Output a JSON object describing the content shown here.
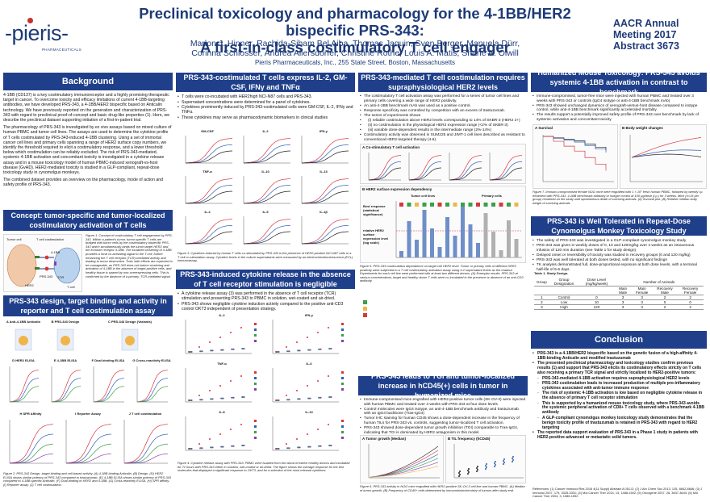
{
  "header": {
    "logo_text": "-pieris-",
    "logo_sub": "PHARMACEUTICALS",
    "title_line1": "Preclinical toxicology and pharmacology for the 4-1BB/HER2 bispecific PRS-343:",
    "title_line2": "A first-in-class costimulatory T cell engager",
    "authors_line1": "Marlon J. Hinner, Rachida-Siham Bel Aiba, Thomas Jaquin, Sven Berger, Manuela Dürr,",
    "authors_line2": "Corinna Schlosser, Andrea Allersdorfer, Christine Rothe, Louis A. Matis, Shane A. Olwill",
    "institution": "Pieris Pharmaceuticals, Inc., 255 State Street, Boston, Massachusetts",
    "meeting_line1": "AACR Annual",
    "meeting_line2": "Meeting 2017",
    "meeting_line3": "Abstract 3673"
  },
  "background": {
    "heading": "Background",
    "p1": "4-1BB (CD137) is a key costimulatory immunoreceptor and a highly promising therapeutic target in cancer. To overcome toxicity and efficacy limitations of current 4-1BB-targeting antibodies, we have developed PRS-343, a 4-1BB/HER2 bispecific based on Anticalin technology. We have previously reported on the generation and characterization of PRS-343 with regard to preclinical proof-of-concept and basic drug-like properties (1). Here, we describe the preclinical dataset supporting initiation of a first-in-patient trial.",
    "p2": "The pharmacology of PRS-343 is investigated by ex vivo assays based on mixed culture of human PBMC and tumor cell lines. The assays are used to determine the cytokine profile of T cells costimulated by PRS-343-induced 4-1BB clustering. Using a set of immortal cancer cell lines and primary cells spanning a range of HER2 surface copy numbers, we identify the threshold required to elicit a costimulatory response, and a lower threshold below which costimulation can be reliably excluded. The risk of PRS-343-mediated, systemic 4-1BB activation and concomitant toxicity is investigated in a cytokine release assay and in a mouse toxicology model of human PBMC-induced xenograft-vs-host disease (GvHD). HER2-mediated toxicity is studied in a GLP-compliant, repeat-dose toxicology study in cynomolgus monkeys.",
    "p3": "The combined dataset provides an overview on the pharmacology, mode of action and safety profile of PRS-343."
  },
  "concept": {
    "heading": "Concept: tumor-specific and tumor-localized costimulatory activation of T cells",
    "labels": [
      "Tumor cell",
      "T cell costimulation",
      "HER2",
      "PRS-343",
      "4-1BB",
      "TCR",
      "T cell"
    ],
    "caption": "Figure 1. Concept of costimulatory T cell engagement by PRS-343. Within a patient's tumor, tumor-specific T cells are bridged with tumor cells by the costimulatory bispecific PRS-343 which simultaneously binds the tumor target HER2 and the immune receptor 4-1BB. The localized clustering of 4-1BB provides a local co-activating signal to the T cell, further enhancing the T cell receptor (TCR)-mediated activity and leading to tumor destruction. Toxic side effects are expected to be manageable, as PRS-343 does not induce clustering and activation of 4-1BB in the absence of target-positive cells, and healthy tissue is spared by non-overexpressing cells. This is confirmed by the absence of a primary, TCR-mediated signal."
  },
  "design": {
    "heading": "PRS-343 design, target binding and activity in reporter and T cell costimulation assay",
    "panels": [
      "A",
      "B",
      "C",
      "D",
      "E",
      "F",
      "G",
      "H",
      "I",
      "J"
    ],
    "panel_titles": [
      "Anti-4-1BB Anticalin",
      "PRS-343 Design",
      "PRS-343 Design (Variants)",
      "HER2 ELISA",
      "4-1BB ELISA",
      "Dual binding ELISA",
      "Cross-reactivity ELISA",
      "SPR Affinity",
      "Reporter Assay",
      "T cell costimulation"
    ],
    "caption": "Figure 2. PRS-343 Design, target binding and cell-based activity. (A) 4-1BB binding Anticalin. (B) Design. (D) HER2 ELISA shows similar potency of PRS-343 compared to trastuzumab. (E) 4-1BB ELISA shows similar potency of PRS-343 compared to 4-1BB-specific Anticalin. (F) Dual binding to HER2 and 4-1BB. (G) Cross-reactivity ELISA. (H) SPR affinity. (I) Reporter assay. (J) T cell costimulation."
  },
  "cytokine": {
    "heading": "PRS-343-costimulated T cells express IL-2, GM-CSF, IFNγ and TNFα",
    "bullets": [
      "T cells were co-incubated with HER2high NCI-N87 cells and PRS-343.",
      "Supernatant concentrations were determined for a panel of cytokines.",
      "Cytokines prominently induced by PRS-343-costimulated cells were GM-CSF, IL-2, IFNγ and TNFα.",
      "These cytokines may serve as pharmacodynamic biomarkers in clinical studies"
    ],
    "plots": [
      "GM-CSF",
      "IL-2",
      "IFN-γ",
      "TNF-α",
      "IL-10",
      "IL-13",
      "IL-4",
      "IL-5",
      "IL-1β"
    ],
    "caption": "Figure 3. Cytokines induced by human T cells co-stimulated by PRS-343 in the presence of HER2-positive NCI-N87 cells in a T cell co-stimulation assay. Cytokine levels in the culture supernatants were measured by an electrochemiluminescence (ECL) immunoassay."
  },
  "release": {
    "heading": "PRS-343-induced cytokine release in the absence of T cell receptor stimulation is negligible",
    "bullets": [
      "A cytokine release assay (3) was performed in the absence of T cell receptor (TCR) stimulation and presenting PRS-343 to PBMC in solution, wet-coated and air-dried.",
      "PRS-343 shows negligible cytokine induction activity compared to the positive anti-CD3 control OKT3 independent of presentation strategy."
    ],
    "plots": [
      "IL-2",
      "IFN-γ",
      "TNF-α",
      "IL-6",
      "IL-8",
      "IL-10"
    ],
    "caption": "Figure 4. Cytokine release assay with PRS-343. PBMC were isolated from the blood of twelve healthy donors and incubated for 72 hours with PRS-343 either in solution, wet-coated or air-dried. The figure shows the average response for the test molecules that displayed a significant response to OKT3, and for a selection of the most relevant cytokines."
  },
  "her2": {
    "heading": "PRS-343-mediated T cell costimulation requires supraphysiological HER2 levels",
    "bullets": [
      "The costimulatory T cell activation assay was performed for a series of tumor cell lines and primary cells covering a wide range of HER2 positivity.",
      "An anti-4-1BB benchmark mAb was used as a positive control.",
      "Response specificity was controlled by competition with an excess of trastuzumab.",
      "The series of experiments shows",
      "(i) reliable costimulation above HER2 levels corresponding to 14% of SKBR-3 (HER2 2+)",
      "(ii) no costimulation in the physiological HER2 expression range (<2% of SKBR-3)",
      "(iii) variable dose-dependent results in the intermediate range (2%-14%)",
      "Costimulatory activity was observed in SUM225 and JIMT-1 cell lines described as resistant to conventional HER2-targeted therapy (4-6)."
    ],
    "panel_a": "A  Co-stimulatory T cell activation",
    "panel_b": "B  HER2 surface expression dependency",
    "tumor_lines": "Tumor cell lines",
    "primary_cells": "Primary cells",
    "ylabel_top": "Best response (statistical significance)",
    "ylabel_bottom": "relative HER2 surface expression level (log scale)",
    "caption": "Figure 5. PRS-343 costimulation dependence on target cell HER2 level. Tumor or primary cells of different HER2 positivity were subjected to a T cell costimulatory activation assay using 4-2 supernatant levels as the readout. Experiments for each cell line were performed with at least two different donors. (A) Exemplar results. PRS-343 at various concentrations, target and healthy donor T cells were co-incubated in the presence or absence of an anti-CD3 antibody."
  },
  "tgi": {
    "heading": "PRS-343 leads to TGI and tumor-localized increase in hCD45(+) cells in tumor in humanized mice",
    "bullets": [
      "Immune-compromised mice engrafted with HER2-positive tumor cells (SK-OV-3) were injected with human PBMC and treated over 3 weeks with PRS-343 at four dose levels",
      "Control molecules were IgG4 isotype, an anti-4-1BB benchmark antibody and trastuzumab with an IgG4 backbone (Tras-IgG4)",
      "Tumor IHC staining for human CD45 shows a dose-dependent increase in the frequency of human TILs for PRS-343 vs. controls, suggesting tumor-localized T cell activation.",
      "PRS-343 showed dose-dependent tumor growth inhibition (TGI) comparable to Tras-IgG4, indicating that TGI is dominated by HER2 antagonism in this model."
    ],
    "panel_a": "A  Tumor growth (Median)",
    "panel_b": "B  TIL frequency (hCD45)",
    "caption": "Figure 6. PRS-343 activity in NOG mice engrafted with HER2-positive SK-OV-3 cell line and human PBMC. (A) Median of tumor growth. (B) Frequency of CD45+ cells determined by immunohistochemistry of tumors after study end."
  },
  "mouse_tox": {
    "heading": "Humanized Mouse Toxicology: PRS-343 avoids systemic 4-1BB activation in contrast to benchmark",
    "bullets": [
      "Immune-compromised, tumor-free mice were injected with human PBMC and treated over 3 weeks with PRS-343 or controls (IgG4 isotype or anti-4-1BB benchmark mAb)",
      "PRS-343 showed unchanged dynamics of xenograft-versus-host disease compared to isotype control, while anti-4-1BB benchmark significantly accelerated mortality",
      "The results support a potentially improved safety profile of PRS-343 over benchmark by lack of systemic activation and concomitant toxicity"
    ],
    "panel_a": "A  Survival",
    "panel_b": "B  Body weight changes",
    "caption": "Figure 7. Immuno-compromised female NOG mice were engrafted with 1 × 10⁷ fresh human PBMC, followed by weekly i.p. treatment with PRS-343, 4-1BB benchmark antibody or isotype control at 100 µg/dose (i.p.) for 3 weeks. Mice (n=15 per group) remained on the study until spontaneous death of surviving animals. (A) Survival plot. (B) Relative median body weight of surviving animals."
  },
  "monkey": {
    "heading": "PRS-343 is Well Tolerated in Repeat-Dose Cynomolgus Monkey Toxicology Study",
    "bullets": [
      "The safety of PRS-343 was investigated in a GLP-compliant cynomolgus monkey study",
      "PRS-343 was given in weekly doses of 0, 10 and 120mg/kg over 4 weeks as an intravenous infusion of 120 min duration (see Table 1 for study design)",
      "Delayed onset or reversibility of toxicity was studied in recovery groups (0 and 120 mg/kg)",
      "PRS-343 was well tolerated at both doses tested, with no significant findings",
      "TK analysis demonstrated full, dose-proportional exposure at both dose levels, with a terminal half-life of 5-6 days"
    ],
    "table_title": "Table 1. Study Design.",
    "table_head1": [
      "Group",
      "Group Designation",
      "Dose Level (mg/kg/week)",
      "Number of Animals"
    ],
    "table_head2": [
      "Main Male",
      "Main Female",
      "Recovery Male",
      "Recovery Female"
    ],
    "rows": [
      [
        "1",
        "Control",
        "0",
        "3",
        "3",
        "2",
        "2"
      ],
      [
        "2",
        "Low",
        "10",
        "3",
        "3",
        "0",
        "0"
      ],
      [
        "3",
        "High",
        "120",
        "3",
        "3",
        "2",
        "2"
      ]
    ]
  },
  "conclusion": {
    "heading": "Conclusion",
    "items": [
      "PRS-343 is a 4-1BB/HER2 bispecific based on the genetic fusion of a high-affinity 4-1BB-binding Anticalin and modified trastuzumab",
      "The presented preclinical pharmacology and toxicology studies confirm previous results (1) and support that PRS-343 elicits its costimulatory effects strictly on T cells also receiving a primary TCR signal and strictly localized to HER2-positive tumors:",
      "PRS-343-mediated 4-1BB activation requires supraphysiological HER2 levels",
      "PRS-343 costimulation leads to increased production of multiple pro-inflammatory cytokines associated with anti-tumor immune response",
      "The risk of systemic 4-1BB activation is low based on negligible cytokine release in the absence of primary T cell receptor stimulation",
      "This is supported by a humanized mouse toxicology study, where PRS-343 avoids the systemic peripheral activation of CD8+ T cells observed with a benchmark 4-1BB antibody",
      "A GLP-compliant cynomolgus monkey toxicology study demonstrates that the benign toxicity profile of trastuzumab is retained in PRS-343 with regard to HER2 targeting",
      "The reported data support evaluation of PRS-343 in a Phase 1 study in patients with HER2-positive advanced or metastatic solid tumors."
    ],
    "references": "References: (1) Cancer Immunol Res 2016 4(11 Suppl) Abstract A 051-D; (2) J Am Chem Soc 2013, 135, 8842-8846; (3) J Immunol 2007, 179, 3325-3331; (4) Mol Cancer Ther 2014, 13, 1488-1502; (5) Oncogene 2007, 26, 3637-3643; (6) Mol Cancer Ther 2004, 3, 1585-1592."
  },
  "colors": {
    "banner": "#1f3f8a",
    "title_text": "#1d3a78",
    "series_blue": "#2f5fb3",
    "series_red": "#d9363e",
    "series_green": "#3aa04a",
    "series_purple": "#8a3db0",
    "series_black": "#222222"
  }
}
